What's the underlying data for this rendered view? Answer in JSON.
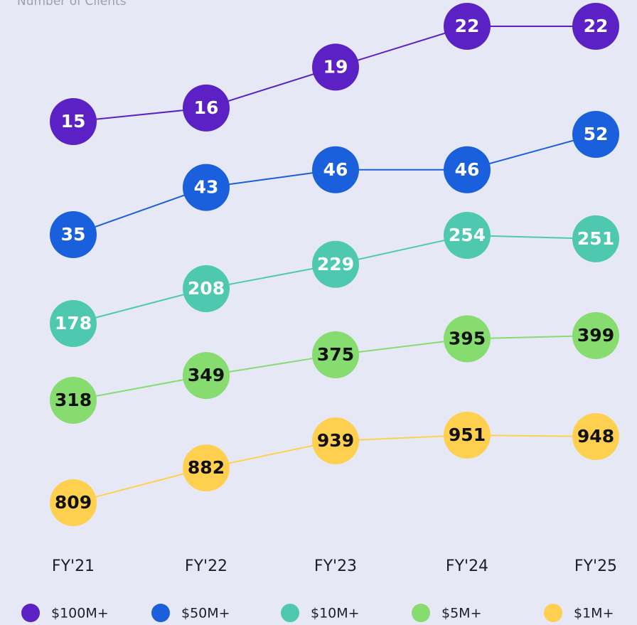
{
  "chart_data": {
    "type": "line",
    "y_label": "Number of Clients",
    "categories": [
      "FY'21",
      "FY'22",
      "FY'23",
      "FY'24",
      "FY'25"
    ],
    "series": [
      {
        "name": "$100M+",
        "color": "#5b21c4",
        "label_color": "#ffffff",
        "values": [
          15,
          16,
          19,
          22,
          22
        ]
      },
      {
        "name": "$50M+",
        "color": "#1a5fdb",
        "label_color": "#ffffff",
        "values": [
          35,
          43,
          46,
          46,
          52
        ]
      },
      {
        "name": "$10M+",
        "color": "#4ec9b0",
        "label_color": "#ffffff",
        "values": [
          178,
          208,
          229,
          254,
          251
        ]
      },
      {
        "name": "$5M+",
        "color": "#86dc6e",
        "label_color": "#111111",
        "values": [
          318,
          349,
          375,
          395,
          399
        ]
      },
      {
        "name": "$1M+",
        "color": "#ffd04f",
        "label_color": "#111111",
        "values": [
          809,
          882,
          939,
          951,
          948
        ]
      }
    ]
  }
}
